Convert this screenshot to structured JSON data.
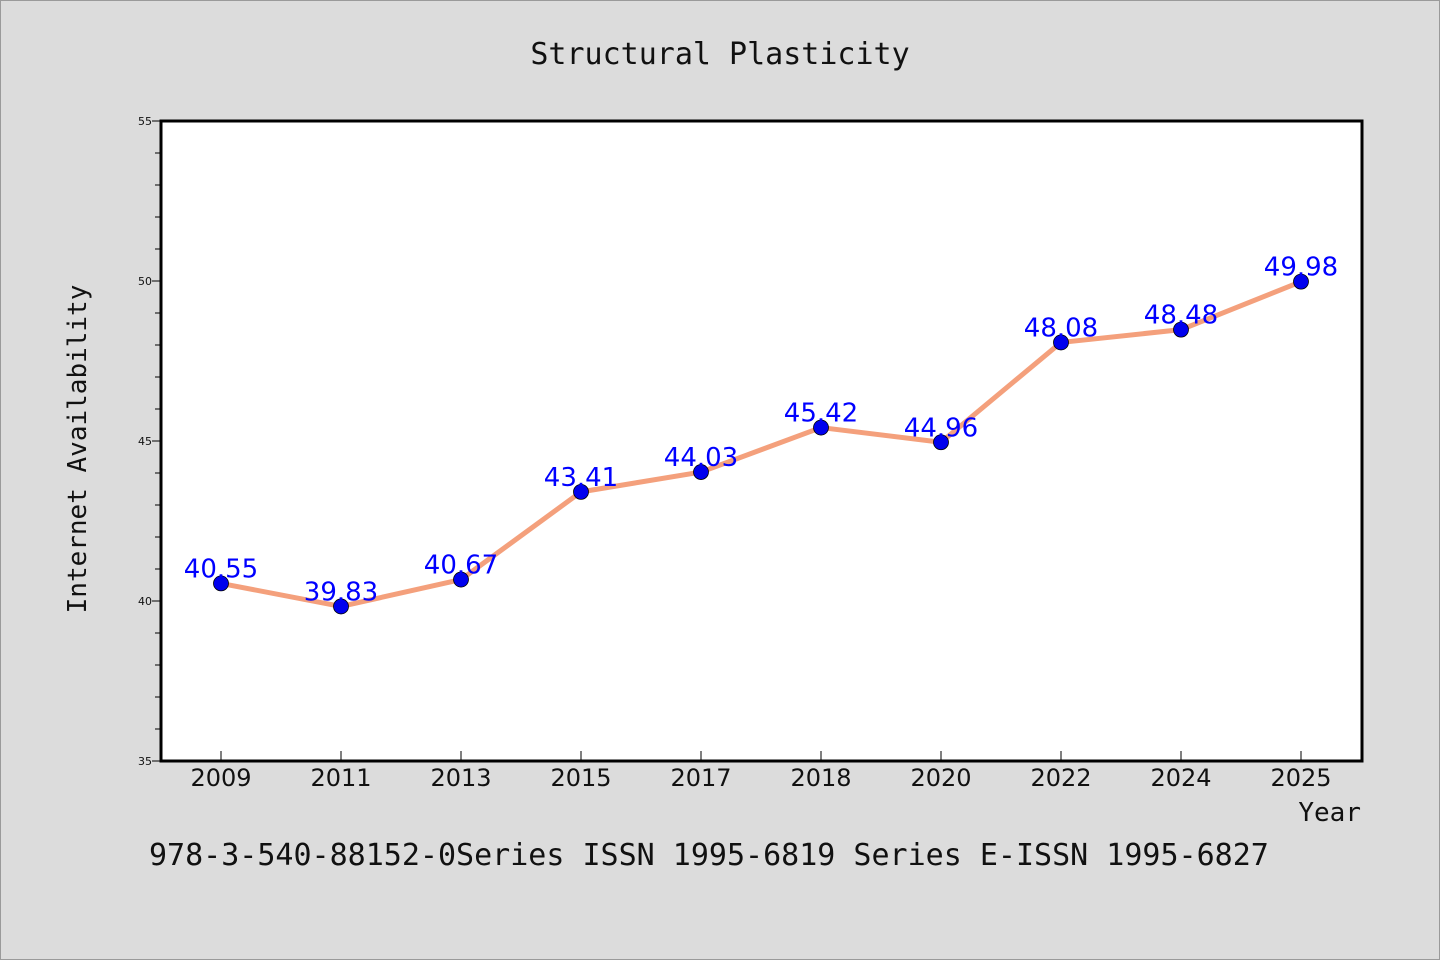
{
  "chart_data": {
    "type": "line",
    "title": "Structural Plasticity",
    "xlabel": "Year",
    "ylabel": "Internet Availability",
    "categories": [
      "2009",
      "2011",
      "2013",
      "2015",
      "2017",
      "2018",
      "2020",
      "2022",
      "2024",
      "2025"
    ],
    "series": [
      {
        "values": [
          40.55,
          39.83,
          40.67,
          43.41,
          44.03,
          45.42,
          44.96,
          48.08,
          48.48,
          49.98
        ],
        "line_color": "#f4a07c",
        "marker_color": "#0000ee"
      }
    ],
    "data_labels": [
      "40.55",
      "39.83",
      "40.67",
      "43.41",
      "44.03",
      "45.42",
      "44.96",
      "48.08",
      "48.48",
      "49.98"
    ],
    "ylim": [
      35,
      55
    ],
    "y_ticks": [
      "35",
      "40",
      "45",
      "50",
      "55"
    ],
    "grid": false,
    "legend": "none",
    "label_color": "#0000ff",
    "background_color": "#dcdcdc",
    "plot_background_color": "#ffffff"
  },
  "footer": {
    "note": "978-3-540-88152-0Series ISSN 1995-6819 Series E-ISSN 1995-6827"
  }
}
